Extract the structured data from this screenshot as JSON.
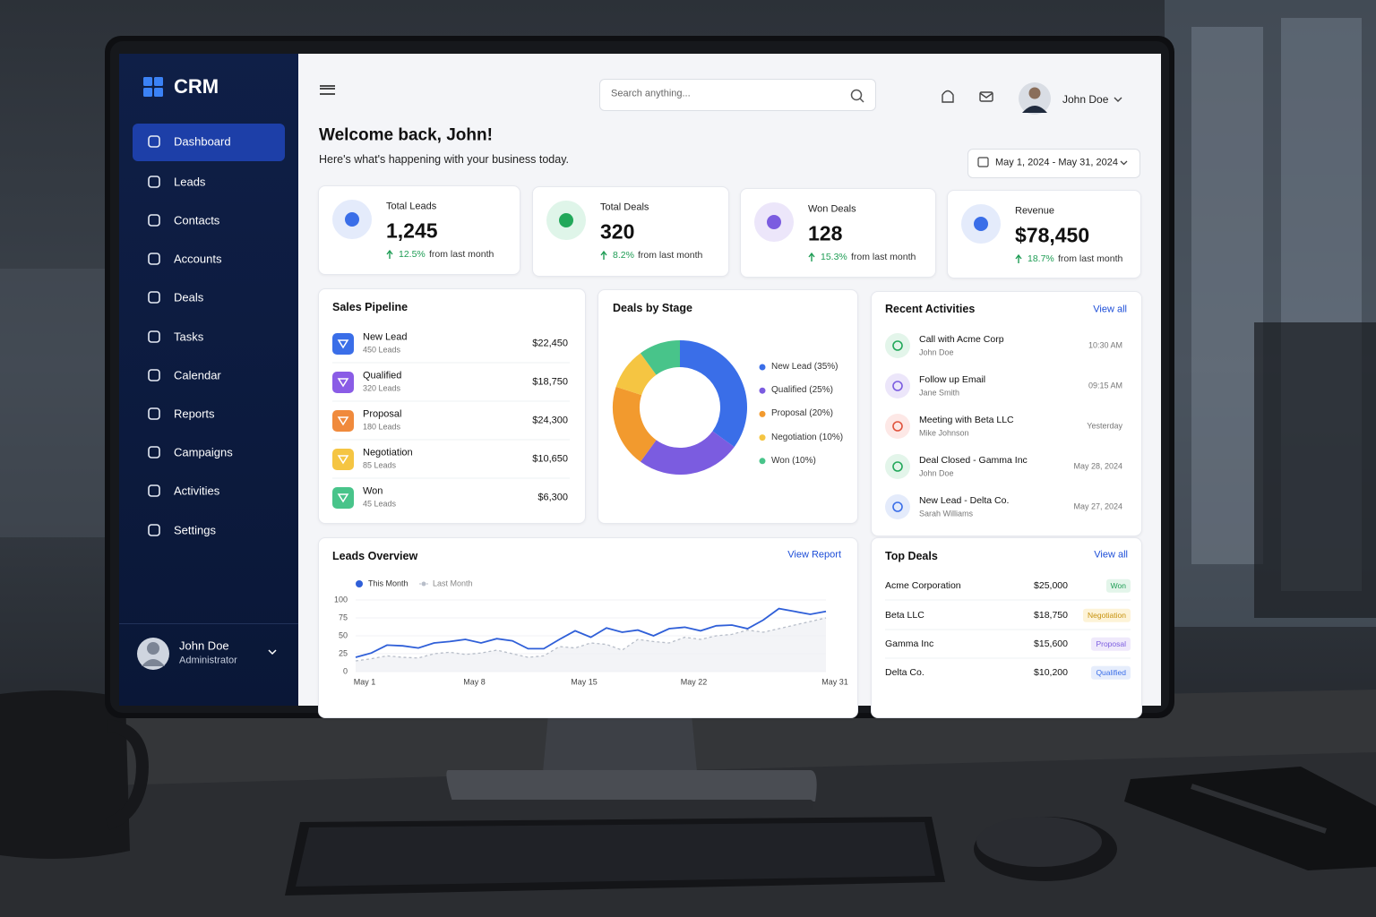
{
  "brand": "CRM",
  "nav": [
    "Dashboard",
    "Leads",
    "Contacts",
    "Accounts",
    "Deals",
    "Tasks",
    "Calendar",
    "Reports",
    "Campaigns",
    "Activities",
    "Settings"
  ],
  "sidebar_user": {
    "name": "John Doe",
    "role": "Administrator"
  },
  "search_placeholder": "Search anything...",
  "header_user": "John Doe",
  "welcome": {
    "title": "Welcome back, John!",
    "subtitle": "Here's what's happening with your business today."
  },
  "date_range": "May 1, 2024 - May 31, 2024",
  "stats": [
    {
      "label": "Total Leads",
      "value": "1,245",
      "change": "12.5%",
      "note": "from last month"
    },
    {
      "label": "Total Deals",
      "value": "320",
      "change": "8.2%",
      "note": "from last month"
    },
    {
      "label": "Won Deals",
      "value": "128",
      "change": "15.3%",
      "note": "from last month"
    },
    {
      "label": "Revenue",
      "value": "$78,450",
      "change": "18.7%",
      "note": "from last month"
    }
  ],
  "sales_pipeline": {
    "title": "Sales Pipeline",
    "stages": [
      {
        "name": "New Lead",
        "count": "450 Leads",
        "amount": "$22,450"
      },
      {
        "name": "Qualified",
        "count": "320 Leads",
        "amount": "$18,750"
      },
      {
        "name": "Proposal",
        "count": "180 Leads",
        "amount": "$24,300"
      },
      {
        "name": "Negotiation",
        "count": "85 Leads",
        "amount": "$10,650"
      },
      {
        "name": "Won",
        "count": "45 Leads",
        "amount": "$6,300"
      }
    ]
  },
  "recent_activities": {
    "title": "Recent Activities",
    "link": "View all",
    "items": [
      {
        "title": "Call with Acme Corp",
        "person": "John Doe",
        "time": "10:30 AM"
      },
      {
        "title": "Follow up Email",
        "person": "Jane Smith",
        "time": "09:15 AM"
      },
      {
        "title": "Meeting with Beta LLC",
        "person": "Mike Johnson",
        "time": "Yesterday"
      },
      {
        "title": "Deal Closed - Gamma Inc",
        "person": "John Doe",
        "time": "May 28, 2024"
      },
      {
        "title": "New Lead - Delta Co.",
        "person": "Sarah Williams",
        "time": "May 27, 2024"
      }
    ]
  },
  "leads_overview_link": "View Report",
  "top_deals": {
    "title": "Top Deals",
    "link": "View all",
    "rows": [
      {
        "company": "Acme Corporation",
        "amount": "$25,000",
        "status": "Won"
      },
      {
        "company": "Beta LLC",
        "amount": "$18,750",
        "status": "Negotiation"
      },
      {
        "company": "Gamma Inc",
        "amount": "$15,600",
        "status": "Proposal"
      },
      {
        "company": "Delta Co.",
        "amount": "$10,200",
        "status": "Qualified"
      }
    ]
  },
  "chart_data": [
    {
      "type": "pie",
      "title": "Deals by Stage",
      "labels": [
        "New Lead (35%)",
        "Qualified (25%)",
        "Proposal (20%)",
        "Negotiation (10%)",
        "Won (10%)"
      ],
      "values": [
        35,
        25,
        20,
        10,
        10
      ],
      "colors": [
        "#3a6ee8",
        "#7b5ce0",
        "#f29a2e",
        "#f5c542",
        "#48c48a"
      ]
    },
    {
      "type": "line",
      "title": "Leads Overview",
      "categories": [
        "May 1",
        null,
        null,
        null,
        null,
        null,
        null,
        "May 8",
        null,
        null,
        null,
        null,
        null,
        null,
        "May 15",
        null,
        null,
        null,
        null,
        null,
        null,
        "May 22",
        null,
        null,
        null,
        null,
        null,
        null,
        null,
        null,
        "May 31"
      ],
      "series": [
        {
          "name": "This Month",
          "color": "#2f5fd8",
          "values": [
            20,
            26,
            37,
            36,
            33,
            40,
            42,
            45,
            40,
            46,
            43,
            32,
            32,
            45,
            57,
            48,
            61,
            55,
            58,
            50,
            60,
            62,
            57,
            64,
            65,
            60,
            72,
            88,
            84,
            80,
            84
          ]
        },
        {
          "name": "Last Month",
          "color": "#b8bec9",
          "values": [
            15,
            18,
            22,
            20,
            19,
            25,
            27,
            24,
            26,
            30,
            25,
            20,
            22,
            35,
            33,
            40,
            38,
            30,
            45,
            42,
            40,
            48,
            45,
            50,
            52,
            58,
            55,
            60,
            65,
            70,
            75
          ]
        }
      ],
      "ylim": [
        0,
        100
      ],
      "yticks": [
        0,
        25,
        50,
        75,
        100
      ]
    }
  ]
}
